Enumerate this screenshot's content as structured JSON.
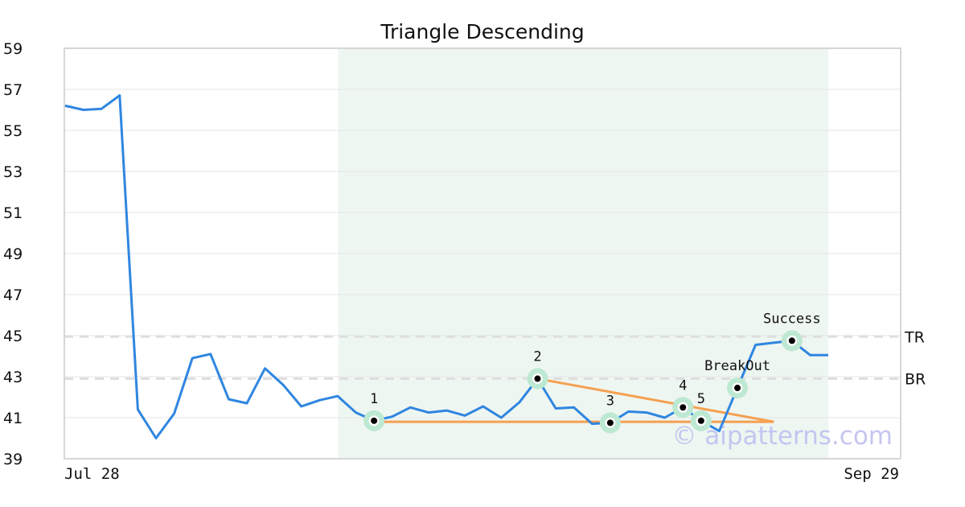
{
  "chart_data": {
    "type": "line",
    "title": "Triangle Descending",
    "x_labels": {
      "start": "Jul 28",
      "end": "Sep 29"
    },
    "ylim": [
      39,
      59
    ],
    "yticks": [
      "39",
      "41",
      "43",
      "45",
      "47",
      "49",
      "51",
      "53",
      "55",
      "57",
      "59"
    ],
    "grid": true,
    "series": [
      {
        "color": "#2f86e0",
        "values": [
          56.2,
          56.0,
          56.05,
          56.7,
          41.4,
          40.0,
          41.2,
          43.9,
          44.1,
          41.9,
          41.7,
          43.4,
          42.6,
          41.55,
          41.85,
          42.05,
          41.25,
          40.85,
          41.05,
          41.5,
          41.25,
          41.35,
          41.1,
          41.55,
          41.0,
          41.75,
          42.9,
          41.45,
          41.5,
          40.7,
          40.75,
          41.3,
          41.25,
          41.0,
          41.5,
          40.85,
          40.35,
          42.45,
          44.55,
          44.65,
          44.75,
          44.05,
          44.05
        ]
      }
    ],
    "pattern_window": {
      "start_index": 15,
      "end_index": 42,
      "color": "#eef6f1"
    },
    "levels": [
      {
        "label": "TR",
        "value": 44.95
      },
      {
        "label": "BR",
        "value": 42.9
      }
    ],
    "points": [
      {
        "label": "1",
        "index": 17,
        "value": 40.85
      },
      {
        "label": "2",
        "index": 26,
        "value": 42.9
      },
      {
        "label": "3",
        "index": 30,
        "value": 40.75
      },
      {
        "label": "4",
        "index": 34,
        "value": 41.5
      },
      {
        "label": "5",
        "index": 35,
        "value": 40.85
      },
      {
        "label": "BreakOut",
        "index": 37,
        "value": 42.45
      },
      {
        "label": "Success",
        "index": 40,
        "value": 44.75
      }
    ],
    "trend_lines": [
      {
        "from": {
          "index": 17,
          "value": 40.8
        },
        "to": {
          "index": 39,
          "value": 40.8
        },
        "color": "#f5a050"
      },
      {
        "from": {
          "index": 26,
          "value": 42.9
        },
        "to": {
          "index": 39,
          "value": 40.8
        },
        "color": "#f5a050"
      }
    ],
    "watermark": "© aipatterns.com"
  }
}
